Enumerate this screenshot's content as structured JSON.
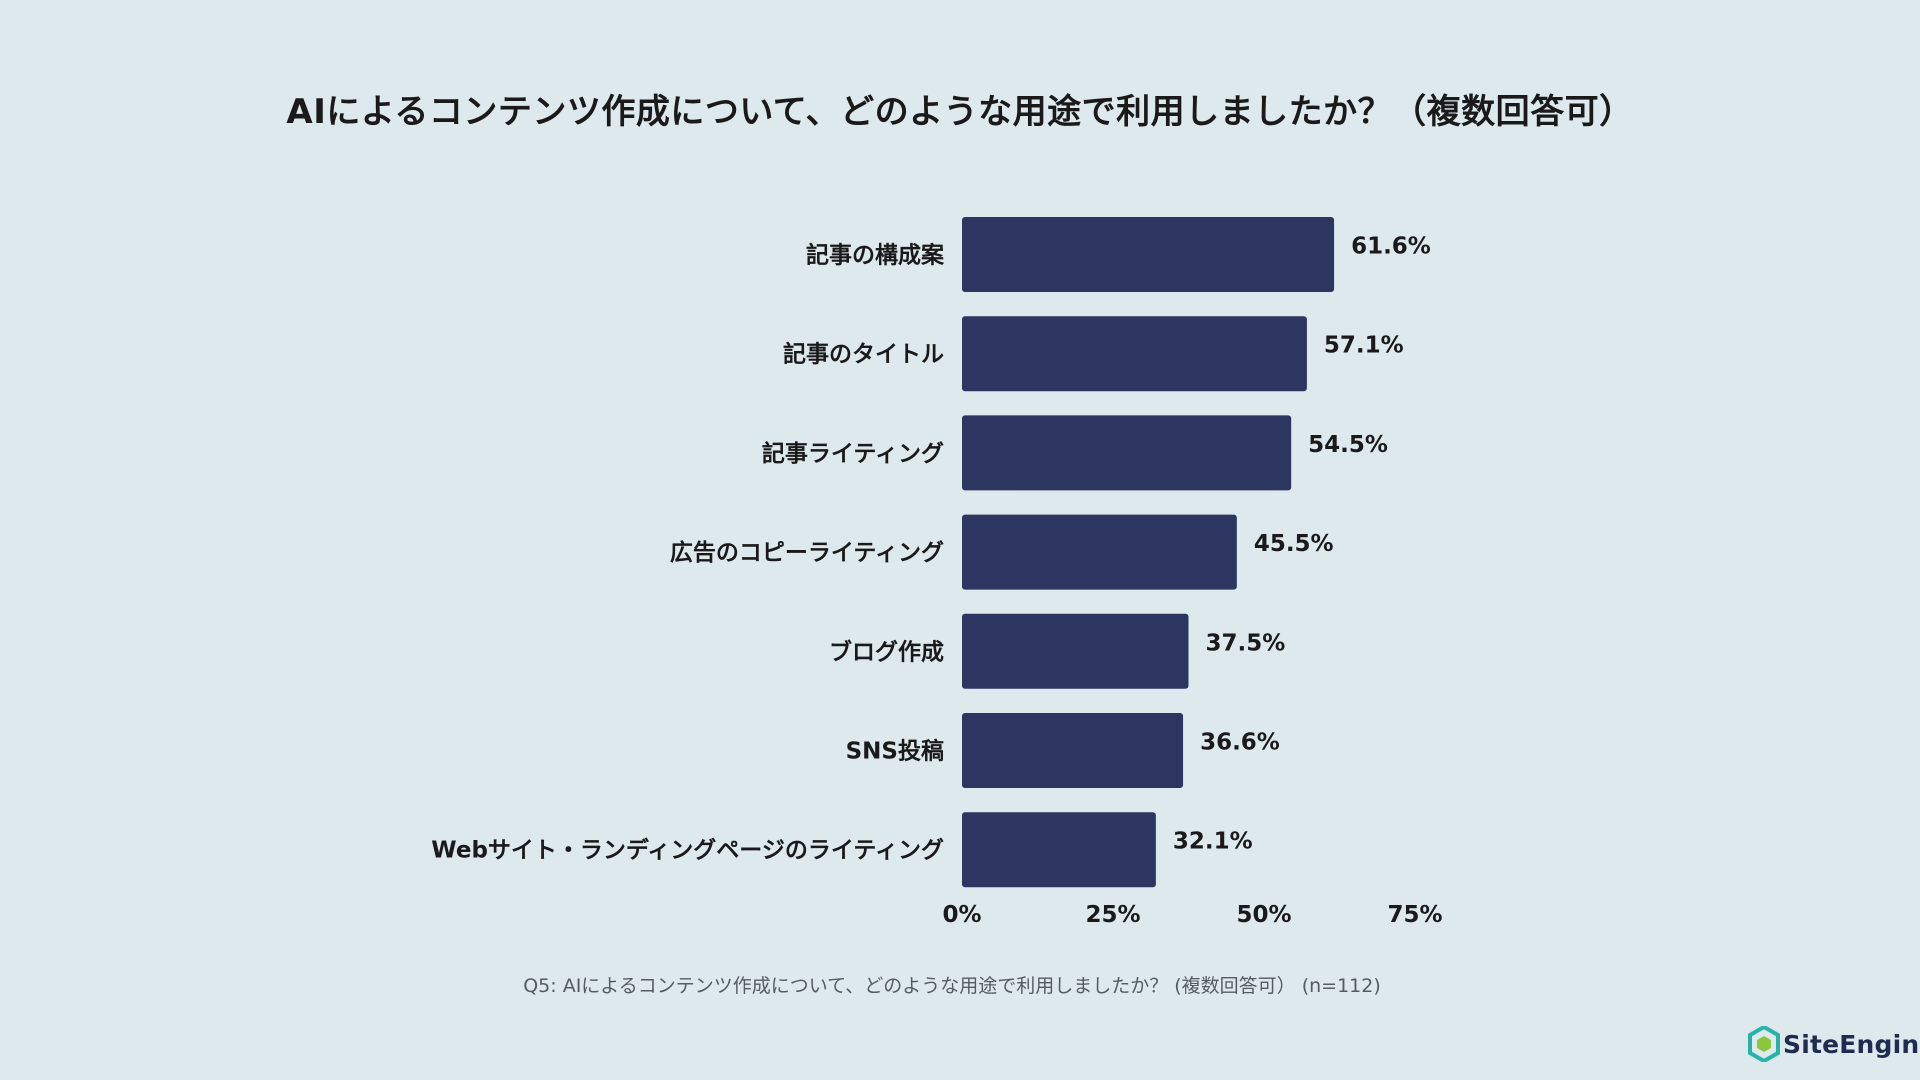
{
  "chart_data": {
    "type": "bar",
    "orientation": "horizontal",
    "title": "AIによるコンテンツ作成について、どのような用途で利用しましたか？（複数回答可）",
    "categories": [
      "記事の構成案",
      "記事のタイトル",
      "記事ライティング",
      "広告のコピーライティング",
      "ブログ作成",
      "SNS投稿",
      "Webサイト・ランディングページのライティング"
    ],
    "values": [
      61.6,
      57.1,
      54.5,
      45.5,
      37.5,
      36.6,
      32.1
    ],
    "value_labels": [
      "61.6%",
      "57.1%",
      "54.5%",
      "45.5%",
      "37.5%",
      "36.6%",
      "32.1%"
    ],
    "xlim": [
      0,
      75
    ],
    "xticks": [
      0,
      25,
      50,
      75
    ],
    "xtick_labels": [
      "0%",
      "25%",
      "50%",
      "75%"
    ],
    "bar_color": "#2d3561",
    "grid": false
  },
  "footnote": "Q5: AIによるコンテンツ作成について、どのような用途で利用しましたか？ (複数回答可） (n=112)",
  "logo": {
    "text": "SiteEngine",
    "icon": "site-engine-hex-logo-icon",
    "colors": [
      "#27b3a8",
      "#8cc63f",
      "#1f2c4f"
    ]
  }
}
